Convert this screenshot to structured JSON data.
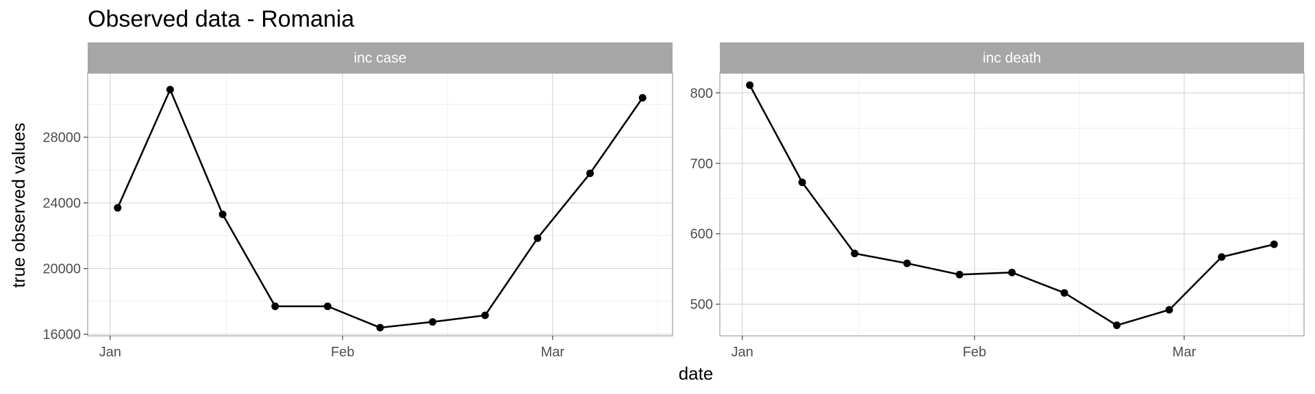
{
  "title": "Observed data - Romania",
  "chart_data": {
    "type": "line",
    "title": "Observed data - Romania",
    "xlabel": "date",
    "ylabel": "true observed values",
    "x": [
      "2021-01-02",
      "2021-01-09",
      "2021-01-16",
      "2021-01-23",
      "2021-01-30",
      "2021-02-06",
      "2021-02-13",
      "2021-02-20",
      "2021-02-27",
      "2021-03-06",
      "2021-03-13"
    ],
    "x_ticks": [
      {
        "date": "2021-01-01",
        "label": "Jan"
      },
      {
        "date": "2021-02-01",
        "label": "Feb"
      },
      {
        "date": "2021-03-01",
        "label": "Mar"
      }
    ],
    "xlim": [
      "2020-12-29",
      "2021-03-17"
    ],
    "grid": true,
    "points": true,
    "panels": [
      {
        "strip": "inc case",
        "ylim": [
          15900,
          31900
        ],
        "y_ticks": [
          16000,
          20000,
          24000,
          28000
        ],
        "y_tick_labels": [
          "16000",
          "20000",
          "24000",
          "28000"
        ],
        "values": [
          23700,
          30900,
          23300,
          17700,
          17700,
          16400,
          16750,
          17150,
          21850,
          25800,
          30400
        ]
      },
      {
        "strip": "inc death",
        "ylim": [
          455,
          828
        ],
        "y_ticks": [
          500,
          600,
          700,
          800
        ],
        "y_tick_labels": [
          "500",
          "600",
          "700",
          "800"
        ],
        "values": [
          811,
          673,
          572,
          558,
          542,
          545,
          516,
          470,
          492,
          567,
          585
        ]
      }
    ]
  }
}
